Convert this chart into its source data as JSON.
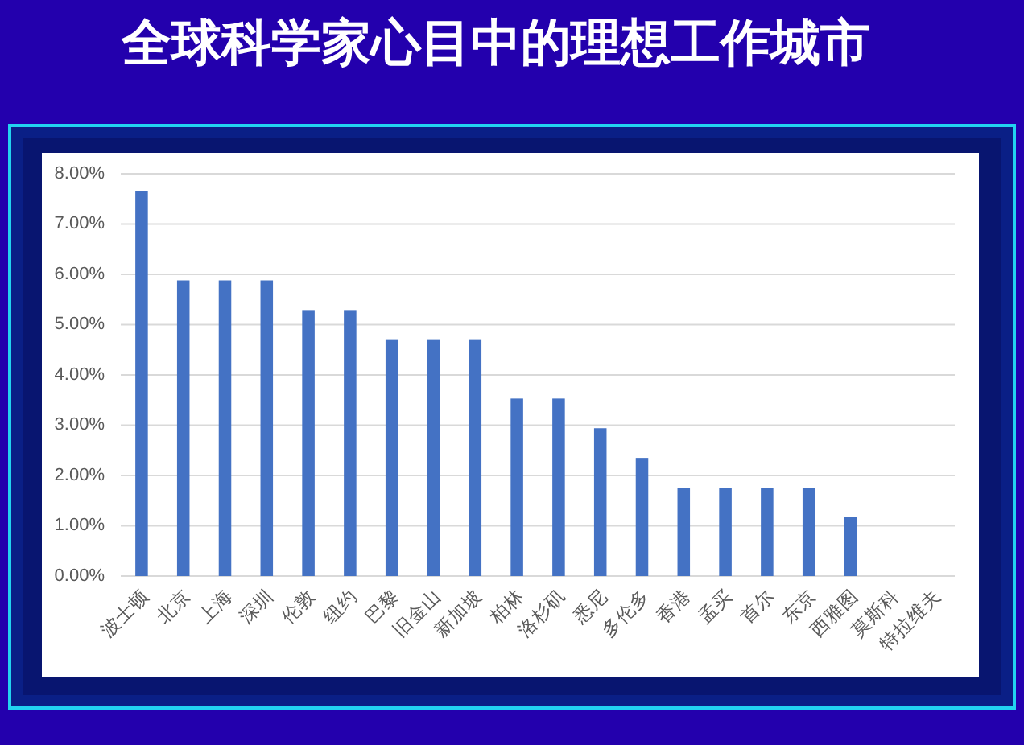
{
  "chart_data": {
    "type": "bar",
    "title": "全球科学家心目中的理想工作城市",
    "categories": [
      "波士顿",
      "北京",
      "上海",
      "深圳",
      "伦敦",
      "纽约",
      "巴黎",
      "旧金山",
      "新加坡",
      "柏林",
      "洛杉矶",
      "悉尼",
      "多伦多",
      "香港",
      "孟买",
      "首尔",
      "东京",
      "西雅图",
      "莫斯科",
      "特拉维夫"
    ],
    "values": [
      7.65,
      5.88,
      5.88,
      5.88,
      5.29,
      5.29,
      4.71,
      4.71,
      4.71,
      3.53,
      3.53,
      2.94,
      2.35,
      1.76,
      1.76,
      1.76,
      1.76,
      1.18,
      0,
      0
    ],
    "color": "#4472c4",
    "ylim": [
      0,
      8
    ],
    "yticks": [
      {
        "value": 0,
        "label": "0.00%"
      },
      {
        "value": 1,
        "label": "1.00%"
      },
      {
        "value": 2,
        "label": "2.00%"
      },
      {
        "value": 3,
        "label": "3.00%"
      },
      {
        "value": 4,
        "label": "4.00%"
      },
      {
        "value": 5,
        "label": "5.00%"
      },
      {
        "value": 6,
        "label": "6.00%"
      },
      {
        "value": 7,
        "label": "7.00%"
      },
      {
        "value": 8,
        "label": "8.00%"
      }
    ],
    "grid": "y"
  }
}
